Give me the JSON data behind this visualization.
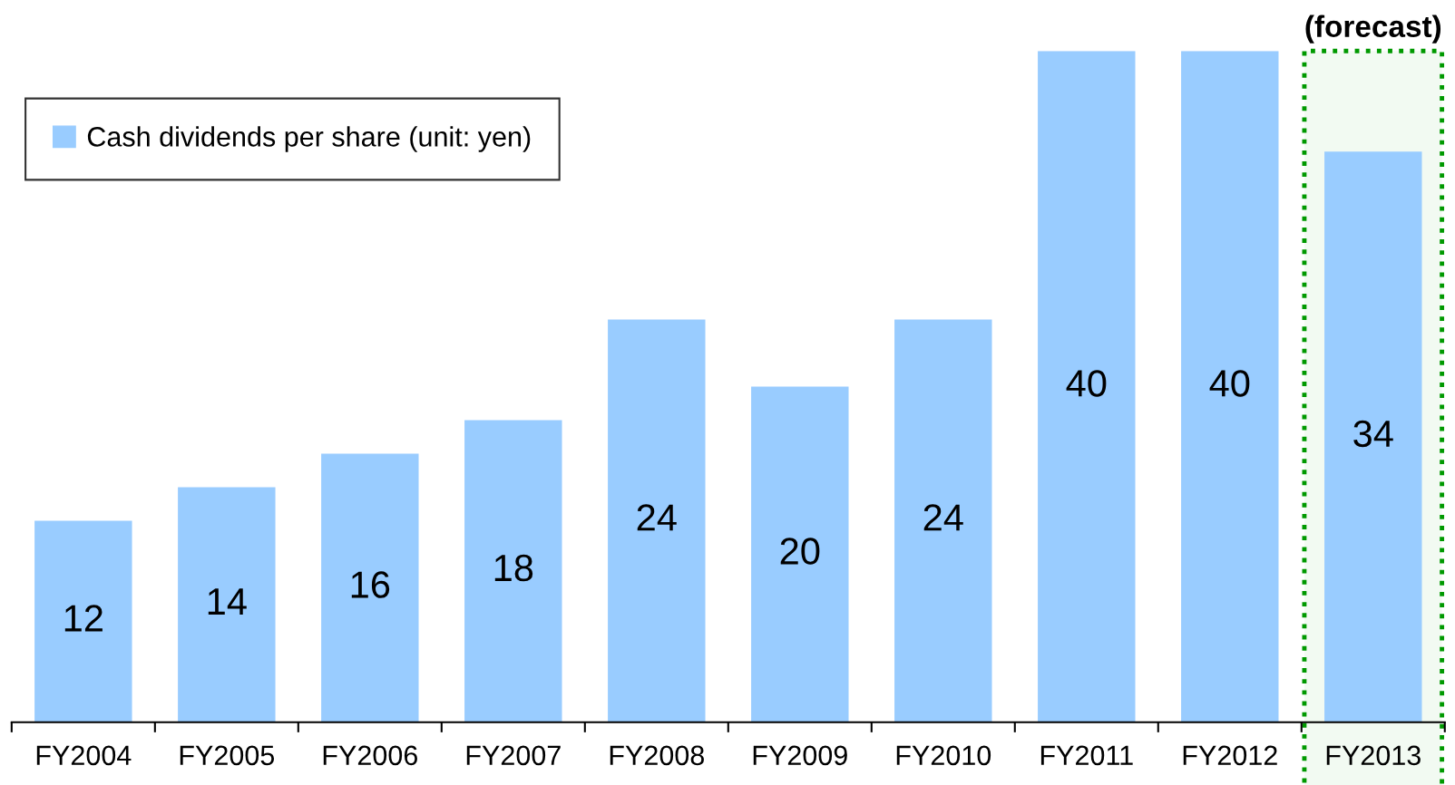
{
  "chart_data": {
    "type": "bar",
    "categories": [
      "FY2004",
      "FY2005",
      "FY2006",
      "FY2007",
      "FY2008",
      "FY2009",
      "FY2010",
      "FY2011",
      "FY2012",
      "FY2013"
    ],
    "series": [
      {
        "name": "Cash dividends per share (unit: yen)",
        "color": "#99ccff",
        "values": [
          12,
          14,
          16,
          18,
          24,
          20,
          24,
          40,
          40,
          34
        ]
      }
    ],
    "data_labels": true,
    "legend": "top left",
    "grid": false,
    "bands": [
      {
        "axis": "x",
        "from": "FY2013",
        "to": "FY2013",
        "label": "(forecast)",
        "color": "#009900"
      }
    ]
  }
}
